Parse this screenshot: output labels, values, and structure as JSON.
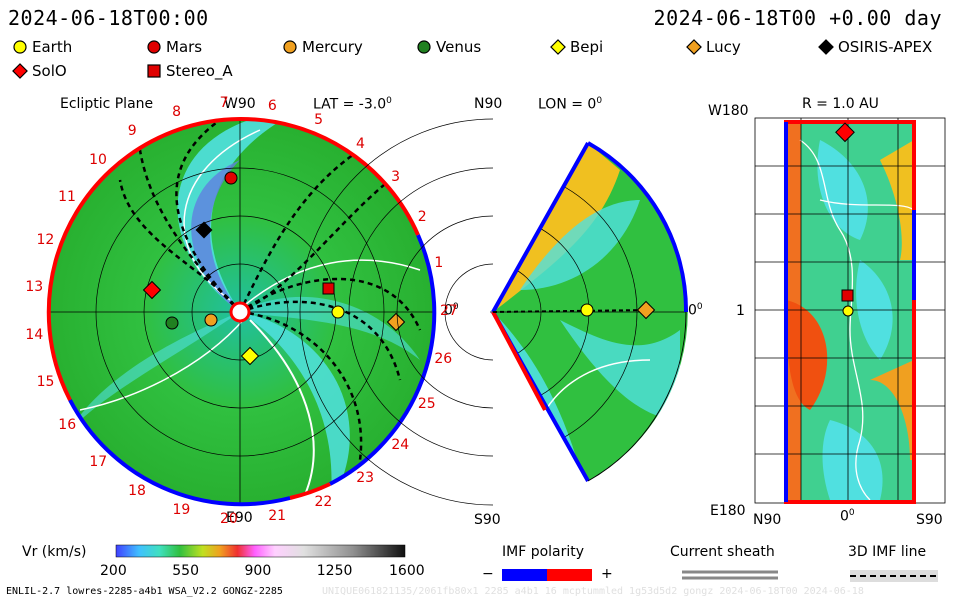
{
  "header": {
    "left_time": "2024-06-18T00:00",
    "right_time": "2024-06-18T00 +0.00 day"
  },
  "legend": [
    {
      "label": "Earth",
      "shape": "circle",
      "color": "#ffff00"
    },
    {
      "label": "Mars",
      "shape": "circle",
      "color": "#e00000"
    },
    {
      "label": "Mercury",
      "shape": "circle",
      "color": "#f0a020"
    },
    {
      "label": "Venus",
      "shape": "circle",
      "color": "#208020"
    },
    {
      "label": "Bepi",
      "shape": "diamond",
      "color": "#ffff00"
    },
    {
      "label": "Lucy",
      "shape": "diamond",
      "color": "#f0a020"
    },
    {
      "label": "OSIRIS-APEX",
      "shape": "diamond",
      "color": "#000000"
    },
    {
      "label": "SolO",
      "shape": "diamond",
      "color": "#ff0000"
    },
    {
      "label": "Stereo_A",
      "shape": "square",
      "color": "#e00000"
    }
  ],
  "panel1": {
    "title": "Ecliptic Plane",
    "top_label": "W90",
    "lat_label": "LAT = -3.0",
    "lat_sup": "0",
    "bottom_label": "E90",
    "right_label": "0",
    "right_sup": "0",
    "carrington_numbers": [
      "1",
      "2",
      "3",
      "4",
      "5",
      "6",
      "7",
      "8",
      "9",
      "10",
      "11",
      "12",
      "13",
      "14",
      "15",
      "16",
      "17",
      "18",
      "19",
      "20",
      "21",
      "22",
      "23",
      "24",
      "25",
      "26",
      "27"
    ]
  },
  "panel2": {
    "top_left": "N90",
    "lon_label": "LON = 0",
    "lon_sup": "0",
    "bottom_left": "S90",
    "right_label": "0",
    "right_sup": "0"
  },
  "panel3": {
    "top_left": "W180",
    "r_label": "R = 1.0 AU",
    "mid_left": "1",
    "bottom_left": "E180",
    "x_left": "N90",
    "x_mid": "0",
    "x_mid_sup": "0",
    "x_right": "S90"
  },
  "colorbar": {
    "label": "Vr (km/s)",
    "ticks": [
      "200",
      "550",
      "900",
      "1250",
      "1600"
    ]
  },
  "imf": {
    "title": "IMF polarity",
    "minus": "−",
    "plus": "+",
    "neg_color": "#0000ff",
    "pos_color": "#ff0000"
  },
  "sheath": {
    "title": "Current sheath"
  },
  "imfline": {
    "title": "3D IMF line"
  },
  "footer": {
    "left": "ENLIL-2.7 lowres-2285-a4b1 WSA_V2.2 GONGZ-2285",
    "right": "UNIQUE061821135/2061fb80x1 2285 a4b1 16 mcptummled 1g53d5d2 gongz 2024-06-18T00 2024-06-18"
  },
  "colors": {
    "accent_red": "#ff0000",
    "accent_blue": "#0000ff",
    "label_red": "#dd0000"
  }
}
